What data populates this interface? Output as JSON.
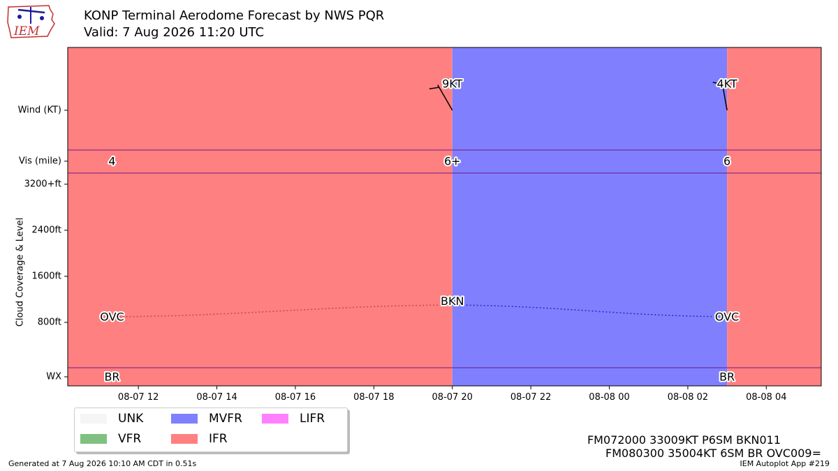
{
  "header": {
    "title": "KONP Terminal Aerodome Forecast by NWS PQR",
    "valid": "Valid: 7 Aug 2026 11:20 UTC",
    "logo_text": "IEM"
  },
  "colors": {
    "ifr": "#ff8080",
    "mvfr": "#8080ff",
    "vfr": "#80c080",
    "lifr": "#ff80ff",
    "unk": "#f5f5f5",
    "ifr_line": "#c84a4a",
    "mvfr_line": "#2a2ac8"
  },
  "legend": [
    {
      "label": "UNK",
      "color": "#f5f5f5"
    },
    {
      "label": "VFR",
      "color": "#80c080"
    },
    {
      "label": "MVFR",
      "color": "#8080ff"
    },
    {
      "label": "IFR",
      "color": "#ff8080"
    },
    {
      "label": "LIFR",
      "color": "#ff80ff"
    }
  ],
  "taf_lines": [
    "FM072000 33009KT P6SM BKN011",
    "FM080300 35004KT 6SM BR OVC009="
  ],
  "footer": {
    "generated": "Generated at 7 Aug 2026 10:10 AM CDT in 0.51s",
    "app": "IEM Autoplot App #219"
  },
  "chart_data": {
    "type": "timeline",
    "x_start_hours": 10.2,
    "x_end_hours": 29.4,
    "x_ticks": [
      {
        "label": "08-07 12",
        "hours": 12
      },
      {
        "label": "08-07 14",
        "hours": 14
      },
      {
        "label": "08-07 16",
        "hours": 16
      },
      {
        "label": "08-07 18",
        "hours": 18
      },
      {
        "label": "08-07 20",
        "hours": 20
      },
      {
        "label": "08-07 22",
        "hours": 22
      },
      {
        "label": "08-08 00",
        "hours": 24
      },
      {
        "label": "08-08 02",
        "hours": 26
      },
      {
        "label": "08-08 04",
        "hours": 28
      }
    ],
    "row_labels": {
      "wind": "Wind (KT)",
      "vis": "Vis (mile)",
      "cloud": "Cloud Coverage & Level",
      "wx": "WX"
    },
    "cloud_ticks": [
      {
        "label": "800ft",
        "value": 800
      },
      {
        "label": "1600ft",
        "value": 1600
      },
      {
        "label": "2400ft",
        "value": 2400
      },
      {
        "label": "3200+ft",
        "value": 3200
      }
    ],
    "category_bands": [
      {
        "category": "IFR",
        "start_hours": 10.2,
        "end_hours": 20.0
      },
      {
        "category": "MVFR",
        "start_hours": 20.0,
        "end_hours": 27.0
      },
      {
        "category": "IFR",
        "start_hours": 27.0,
        "end_hours": 29.4
      }
    ],
    "forecasts": [
      {
        "hours": 11.33,
        "vis": "4",
        "cloud_cover": "OVC",
        "cloud_level_ft": 900,
        "wx": "BR"
      },
      {
        "hours": 20.0,
        "wind_dir_deg": 330,
        "wind_speed_label": "9KT",
        "vis": "6+",
        "cloud_cover": "BKN",
        "cloud_level_ft": 1100
      },
      {
        "hours": 27.0,
        "wind_dir_deg": 350,
        "wind_speed_label": "4KT",
        "vis": "6",
        "cloud_cover": "OVC",
        "cloud_level_ft": 900,
        "wx": "BR"
      }
    ]
  }
}
